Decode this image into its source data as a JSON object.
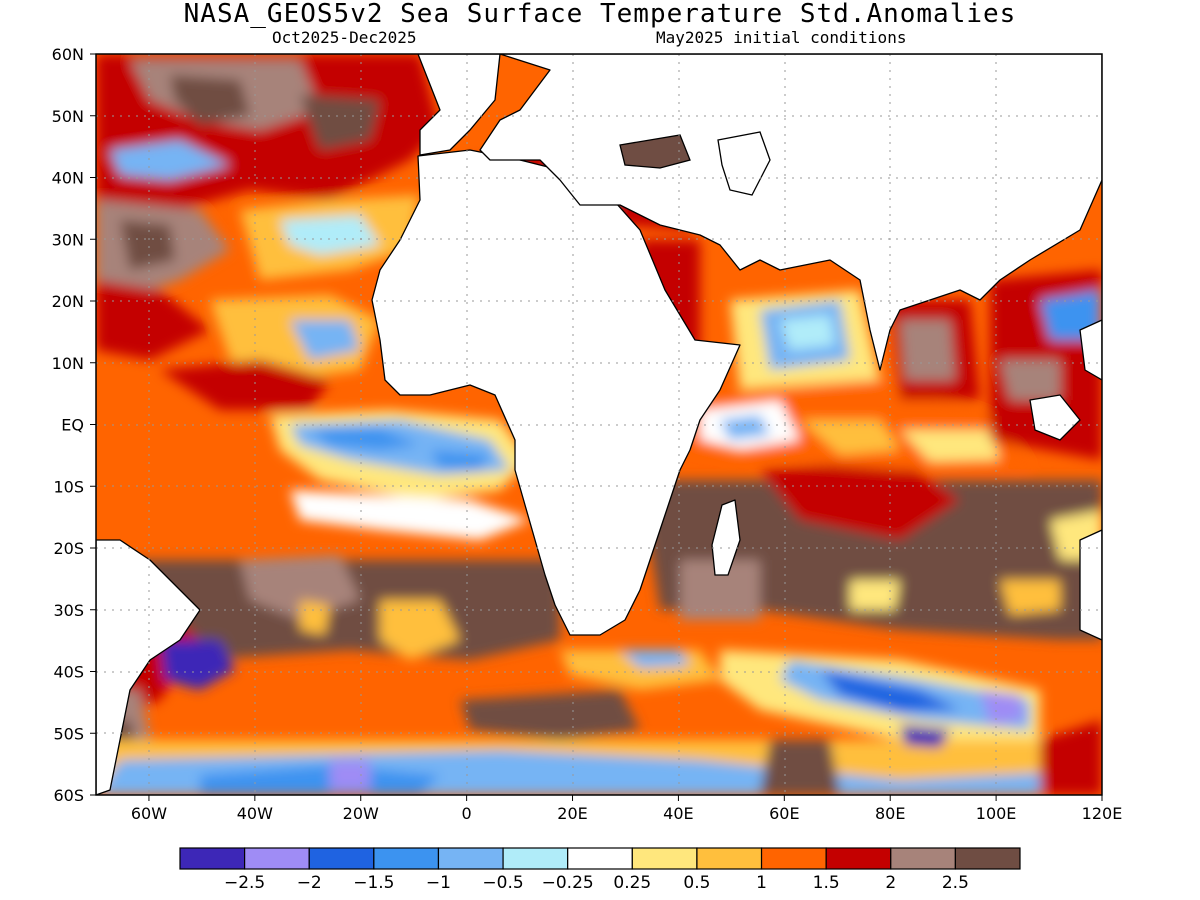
{
  "title": "NASA_GEOS5v2 Sea Surface Temperature Std.Anomalies",
  "subtitle_left": "Oct2025-Dec2025",
  "subtitle_right": "May2025 initial conditions",
  "map": {
    "lon_range": [
      -70,
      120
    ],
    "lat_range": [
      -60,
      60
    ],
    "lon_ticks": [
      "60W",
      "40W",
      "20W",
      "0",
      "20E",
      "40E",
      "60E",
      "80E",
      "100E",
      "120E"
    ],
    "lat_ticks": [
      "60N",
      "50N",
      "40N",
      "30N",
      "20N",
      "10N",
      "EQ",
      "10S",
      "20S",
      "30S",
      "40S",
      "50S",
      "60S"
    ],
    "grid": "dotted"
  },
  "colorbar": {
    "colors": [
      "#3d27b7",
      "#9f8cf5",
      "#1f63e1",
      "#3c93f0",
      "#76b4f4",
      "#b0ecf9",
      "#ffffff",
      "#ffe77d",
      "#ffbf3d",
      "#ff6400",
      "#c40000",
      "#a7837a",
      "#6f4d43"
    ],
    "labels": [
      "-2.5",
      "-2",
      "-1.5",
      "-1",
      "-0.5",
      "-0.25",
      "0.25",
      "0.5",
      "1",
      "1.5",
      "2",
      "2.5"
    ]
  },
  "legend_palette": {
    "land": "#ffffff",
    "coastline": "#000000"
  }
}
